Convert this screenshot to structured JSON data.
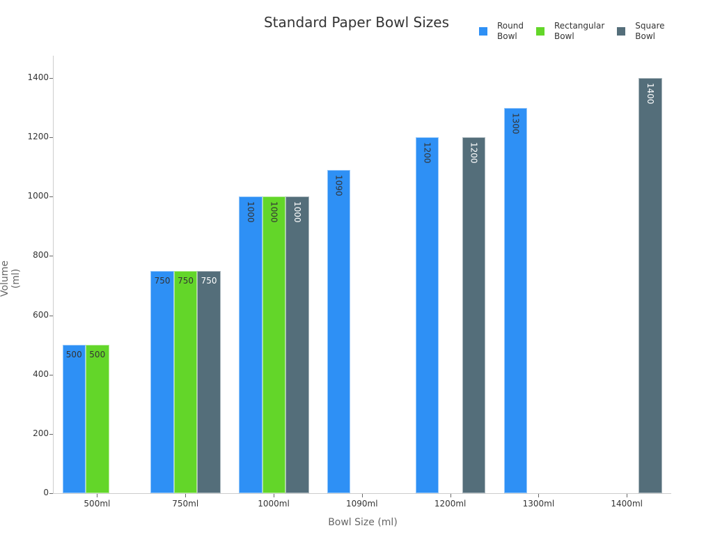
{
  "chart_data": {
    "type": "bar",
    "title": "Standard Paper Bowl Sizes",
    "xlabel": "Bowl Size (ml)",
    "ylabel": "Volume (ml)",
    "ylim": [
      0,
      1470
    ],
    "yticks": [
      0,
      200,
      400,
      600,
      800,
      1000,
      1200,
      1400
    ],
    "grid": false,
    "legend_position": "top-right",
    "categories": [
      "500ml",
      "750ml",
      "1000ml",
      "1090ml",
      "1200ml",
      "1300ml",
      "1400ml"
    ],
    "series": [
      {
        "name": "Round Bowl",
        "color": "#2E90F5",
        "label_color": "#333333",
        "values": [
          500,
          750,
          1000,
          1090,
          1200,
          1300,
          null
        ]
      },
      {
        "name": "Rectangular Bowl",
        "color": "#63D629",
        "label_color": "#333333",
        "values": [
          500,
          750,
          1000,
          null,
          null,
          null,
          null
        ]
      },
      {
        "name": "Square Bowl",
        "color": "#546E7A",
        "label_color": "#ffffff",
        "values": [
          null,
          750,
          1000,
          null,
          1200,
          null,
          1400
        ]
      }
    ]
  },
  "legend": [
    {
      "line1": "Round",
      "line2": "Bowl"
    },
    {
      "line1": "Rectangular",
      "line2": "Bowl"
    },
    {
      "line1": "Square",
      "line2": "Bowl"
    }
  ]
}
